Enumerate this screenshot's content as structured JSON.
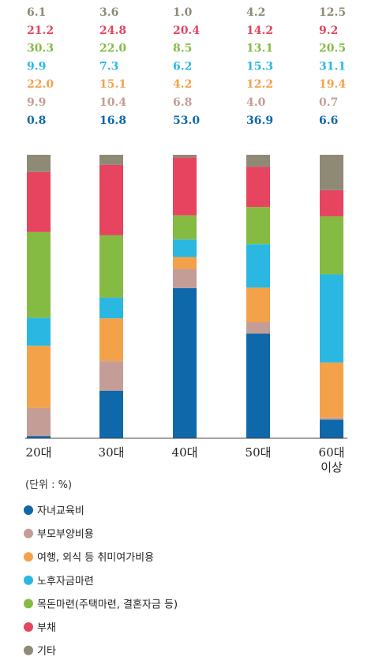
{
  "chart_data": {
    "type": "bar",
    "stacked": true,
    "categories": [
      "20대",
      "30대",
      "40대",
      "50대",
      "60대 이상"
    ],
    "unit_label": "(단위 : %)",
    "ylim": [
      0,
      100
    ],
    "grid": false,
    "legend_position": "bottom",
    "series": [
      {
        "name": "자녀교육비",
        "color": "#0f68a9",
        "values": [
          0.8,
          16.8,
          53.0,
          36.9,
          6.6
        ]
      },
      {
        "name": "부모부양비용",
        "color": "#c49d96",
        "values": [
          9.9,
          10.4,
          6.8,
          4.0,
          0.7
        ]
      },
      {
        "name": "여행, 외식 등 취미여가비용",
        "color": "#f4a24a",
        "values": [
          22.0,
          15.1,
          4.2,
          12.2,
          19.4
        ]
      },
      {
        "name": "노후자금마련",
        "color": "#2ab8e2",
        "values": [
          9.9,
          7.3,
          6.2,
          15.3,
          31.1
        ]
      },
      {
        "name": "목돈마련(주택마련, 결혼자금 등)",
        "color": "#86bb43",
        "values": [
          30.3,
          22.0,
          8.5,
          13.1,
          20.5
        ]
      },
      {
        "name": "부채",
        "color": "#e6445f",
        "values": [
          21.2,
          24.8,
          20.4,
          14.2,
          9.2
        ]
      },
      {
        "name": "기타",
        "color": "#8e8a76",
        "values": [
          6.1,
          3.6,
          1.0,
          4.2,
          12.5
        ]
      }
    ]
  }
}
